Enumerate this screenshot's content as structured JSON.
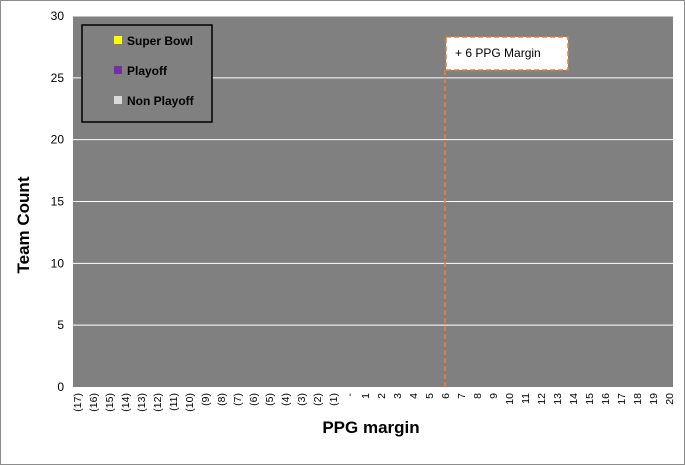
{
  "chart_data": {
    "type": "bar",
    "xlabel": "PPG margin",
    "ylabel": "Team Count",
    "ylim": [
      0,
      30
    ],
    "yticks": [
      0,
      5,
      10,
      15,
      20,
      25,
      30
    ],
    "grid": true,
    "legend_position": "top-left",
    "colors": {
      "plot_bg": "#808080",
      "gridline": "#ffffff",
      "super_bowl": "#ffff00",
      "playoff": "#7030a0",
      "non_playoff": "#d9d9d9",
      "marker_line": "#ed7d31"
    },
    "x_tick_labels": [
      "(17)",
      "(16)",
      "(15)",
      "(14)",
      "(13)",
      "(12)",
      "(11)",
      "(10)",
      "(9)",
      "(8)",
      "(7)",
      "(6)",
      "(5)",
      "(4)",
      "(3)",
      "(2)",
      "(1)",
      "-",
      "1",
      "2",
      "3",
      "4",
      "5",
      "6",
      "7",
      "8",
      "9",
      "10",
      "11",
      "12",
      "13",
      "14",
      "15",
      "16",
      "17",
      "18",
      "19",
      "20"
    ],
    "categories": [
      "-17.0",
      "-16.5",
      "-16.0",
      "-15.5",
      "-15.0",
      "-14.5",
      "-14.0",
      "-13.5",
      "-13.0",
      "-12.5",
      "-12.0",
      "-11.5",
      "-11.0",
      "-10.5",
      "-10.0",
      "-9.5",
      "-9.0",
      "-8.5",
      "-8.0",
      "-7.5",
      "-7.0",
      "-6.5",
      "-6.0",
      "-5.5",
      "-5.0",
      "-4.5",
      "-4.0",
      "-3.5",
      "-3.0",
      "-2.5",
      "-2.0",
      "-1.5",
      "-1.0",
      "-0.5",
      "0.0",
      "0.5",
      "1.0",
      "1.5",
      "2.0",
      "2.5",
      "3.0",
      "3.5",
      "4.0",
      "4.5",
      "5.0",
      "5.5",
      "6.0",
      "6.5",
      "7.0",
      "7.5",
      "8.0",
      "8.5",
      "9.0",
      "9.5",
      "10.0",
      "10.5",
      "11.0",
      "11.5",
      "12.0",
      "12.5",
      "13.0",
      "13.5",
      "14.0",
      "14.5",
      "15.0",
      "15.5",
      "16.0",
      "16.5",
      "17.0",
      "17.5",
      "18.0",
      "18.5",
      "19.0",
      "19.5",
      "20.0"
    ],
    "series": [
      {
        "name": "Super Bowl",
        "values": [
          0,
          0,
          0,
          0,
          0,
          0,
          0,
          0,
          0,
          0,
          0,
          0,
          0,
          0,
          0,
          0,
          0,
          0,
          0,
          0,
          0,
          0,
          0,
          0,
          0,
          0,
          0,
          0,
          0,
          0,
          0,
          0,
          0,
          0,
          0,
          0,
          0,
          0,
          0,
          0,
          0,
          0,
          0,
          0,
          0,
          0,
          0,
          0,
          0,
          0,
          0,
          0,
          0,
          0,
          0,
          0,
          0,
          0,
          0,
          0,
          0,
          0,
          0,
          0,
          0,
          0,
          0,
          0,
          0,
          0,
          0,
          0,
          0,
          0,
          0
        ]
      },
      {
        "name": "Playoff",
        "values": [
          0,
          0,
          0,
          0,
          0,
          0,
          0,
          0,
          0,
          0,
          0,
          0,
          0,
          0,
          0,
          0,
          0,
          0,
          0,
          0,
          0,
          0,
          0,
          0,
          0,
          0,
          0,
          0,
          0,
          0,
          0,
          0,
          0,
          0,
          0,
          0,
          0,
          0,
          0,
          0,
          0,
          0,
          0,
          0,
          0,
          0,
          0,
          0,
          0,
          0,
          0,
          0,
          0,
          0,
          0,
          0,
          0,
          0,
          0,
          0,
          0,
          0,
          0,
          0,
          0,
          0,
          0,
          0,
          0,
          0,
          0,
          0,
          0,
          0,
          0
        ]
      },
      {
        "name": "Non Playoff",
        "values": [
          0,
          0,
          0,
          0,
          0,
          0,
          0,
          0,
          0,
          0,
          0,
          0,
          0,
          0,
          0,
          0,
          0,
          0,
          0,
          0,
          0,
          0,
          0,
          0,
          0,
          0,
          0,
          0,
          0,
          0,
          0,
          0,
          0,
          0,
          0,
          0,
          0,
          0,
          0,
          0,
          0,
          0,
          0,
          0,
          0,
          0,
          0,
          0,
          0,
          0,
          0,
          0,
          0,
          0,
          0,
          0,
          0,
          0,
          0,
          0,
          0,
          0,
          0,
          0,
          0,
          0,
          0,
          0,
          0,
          0,
          0,
          0,
          0,
          0,
          0
        ]
      }
    ],
    "annotation": {
      "label": "+ 6 PPG Margin",
      "x": 6
    }
  }
}
